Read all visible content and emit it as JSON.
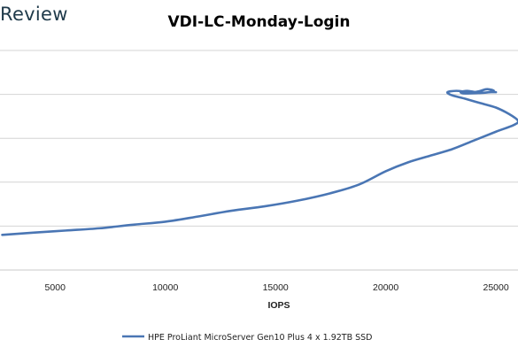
{
  "brand": {
    "text": "Review"
  },
  "chart_data": {
    "type": "line",
    "title": "VDI-LC-Monday-Login",
    "xlabel": "IOPS",
    "ylabel": "",
    "xlim": [
      2500,
      26000
    ],
    "ylim": [
      0,
      5
    ],
    "x_ticks": [
      5000,
      10000,
      15000,
      20000,
      25000
    ],
    "y_gridlines": [
      1,
      2,
      3,
      4,
      5
    ],
    "grid": true,
    "legend_position": "bottom",
    "line_color": "#4a76b4",
    "series": [
      {
        "name": "HPE ProLiant MicroServer Gen10 Plus 4 x 1.92TB SSD",
        "x": [
          2600,
          4000,
          5500,
          7000,
          8500,
          10000,
          11500,
          13000,
          14500,
          16000,
          17500,
          18800,
          20000,
          21000,
          22000,
          23000,
          24000,
          25000,
          25800,
          26000,
          25600,
          25000,
          24300,
          23600,
          23000,
          22800,
          23200,
          23600,
          24000,
          24300,
          24600,
          24900,
          24500,
          24100,
          23700,
          23400,
          23600,
          24200,
          24800,
          25000
        ],
        "y": [
          0.8,
          0.85,
          0.9,
          0.95,
          1.03,
          1.1,
          1.22,
          1.35,
          1.45,
          1.58,
          1.75,
          1.95,
          2.25,
          2.45,
          2.6,
          2.75,
          2.95,
          3.15,
          3.3,
          3.4,
          3.55,
          3.7,
          3.8,
          3.9,
          3.98,
          4.05,
          4.08,
          4.06,
          4.05,
          4.08,
          4.12,
          4.08,
          4.04,
          4.05,
          4.08,
          4.05,
          4.02,
          4.03,
          4.05,
          4.05
        ]
      }
    ]
  }
}
